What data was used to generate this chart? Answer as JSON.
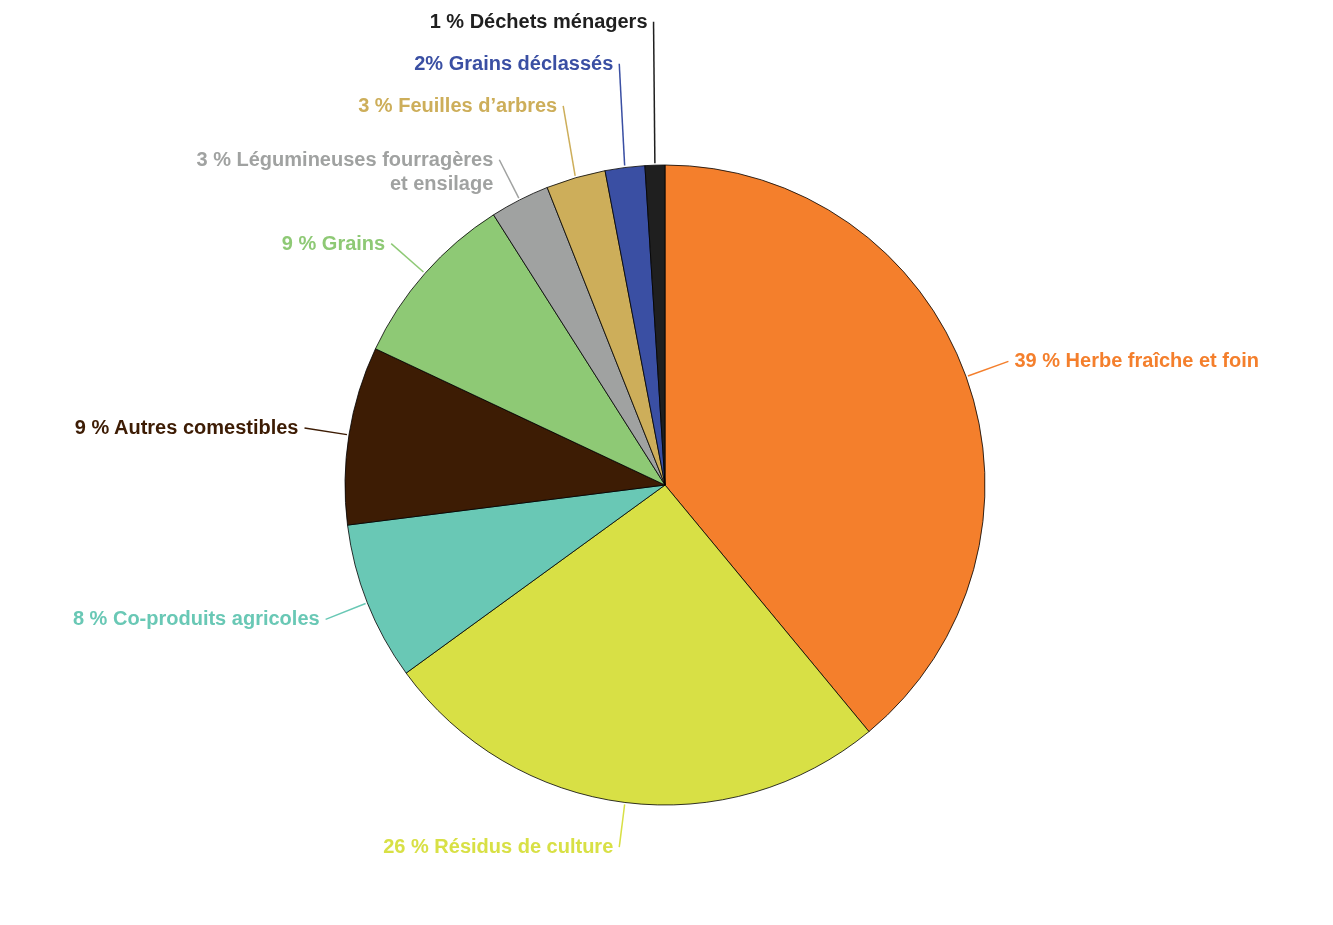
{
  "chart_data": {
    "type": "pie",
    "categories": [
      "Herbe fraîche et foin",
      "Résidus de culture",
      "Co-produits agricoles",
      "Autres comestibles",
      "Grains",
      "Légumineuses fourragères et ensilage",
      "Feuilles d’arbres",
      "Grains déclassés",
      "Déchets ménagers"
    ],
    "values": [
      39,
      26,
      8,
      9,
      9,
      3,
      3,
      2,
      1
    ],
    "value_labels": [
      "39 %",
      "26 %",
      "8 %",
      "9 %",
      "9 %",
      "3 %",
      "3 %",
      "2%",
      "1 %"
    ],
    "colors": [
      "#f47f2c",
      "#d8e045",
      "#69c8b5",
      "#3d1c04",
      "#8ec975",
      "#a0a2a1",
      "#cdae5a",
      "#3a4fa3",
      "#1f1f1f"
    ]
  }
}
